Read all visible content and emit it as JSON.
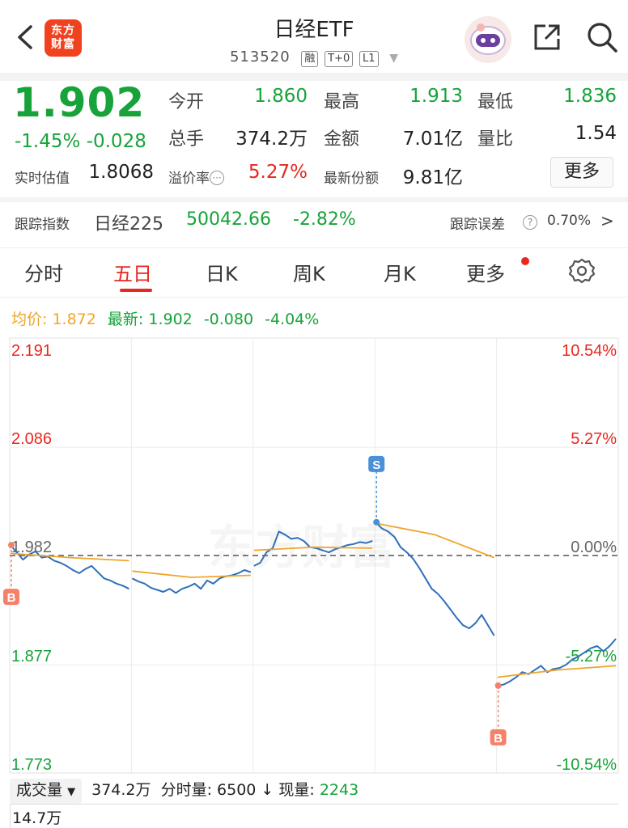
{
  "header": {
    "title": "日经ETF",
    "code": "513520",
    "tags": [
      "融",
      "T+0",
      "L1"
    ],
    "logo_text": "东方财富"
  },
  "quote": {
    "price": "1.902",
    "change_pct": "-1.45%",
    "change_abs": "-0.028",
    "open_label": "今开",
    "open": "1.860",
    "high_label": "最高",
    "high": "1.913",
    "low_label": "最低",
    "low": "1.836",
    "vol_label": "总手",
    "vol": "374.2万",
    "amount_label": "金额",
    "amount": "7.01亿",
    "ratio_label": "量比",
    "ratio": "1.54",
    "iopv_label": "实时估值",
    "iopv": "1.8068",
    "premium_label": "溢价率",
    "premium": "5.27%",
    "shares_label": "最新份额",
    "shares": "9.81亿",
    "more_label": "更多"
  },
  "tracking": {
    "label": "跟踪指数",
    "index_name": "日经225",
    "index_value": "50042.66",
    "index_change": "-2.82%",
    "error_label": "跟踪误差",
    "error_value": "0.70%"
  },
  "tabs": [
    "分时",
    "五日",
    "日K",
    "周K",
    "月K",
    "更多"
  ],
  "active_tab": "五日",
  "legend": {
    "avg_label": "均价:",
    "avg_value": "1.872",
    "latest_label": "最新:",
    "latest_value": "1.902",
    "latest_change": "-0.080",
    "latest_pct": "-4.04%"
  },
  "chart_data": {
    "type": "line",
    "y_left_labels": [
      "2.191",
      "2.086",
      "1.982",
      "1.877",
      "1.773"
    ],
    "y_right_labels": [
      "10.54%",
      "5.27%",
      "0.00%",
      "-5.27%",
      "-10.54%"
    ],
    "ylim": [
      1.773,
      2.191
    ],
    "baseline": 1.982,
    "days": 5,
    "watermark": "东方财富",
    "markers": [
      {
        "label": "B",
        "day": 0,
        "color": "#f4826b"
      },
      {
        "label": "S",
        "day": 3,
        "color": "#4a90d9"
      },
      {
        "label": "B",
        "day": 4,
        "color": "#f4826b"
      }
    ],
    "series": [
      {
        "name": "price",
        "color": "#2f6fbb",
        "days": [
          [
            1.992,
            1.985,
            1.978,
            1.983,
            1.986,
            1.98,
            1.981,
            1.977,
            1.975,
            1.972,
            1.968,
            1.965,
            1.969,
            1.972,
            1.966,
            1.96,
            1.958,
            1.955,
            1.953,
            1.95
          ],
          [
            1.96,
            1.957,
            1.955,
            1.951,
            1.949,
            1.947,
            1.95,
            1.946,
            1.95,
            1.952,
            1.955,
            1.95,
            1.958,
            1.955,
            1.96,
            1.962,
            1.963,
            1.965,
            1.968,
            1.966
          ],
          [
            1.972,
            1.975,
            1.985,
            1.989,
            2.005,
            2.002,
            1.998,
            1.999,
            1.996,
            1.99,
            1.989,
            1.987,
            1.985,
            1.988,
            1.99,
            1.992,
            1.993,
            1.995,
            1.994,
            1.996
          ],
          [
            2.014,
            2.008,
            2.005,
            2.0,
            1.99,
            1.985,
            1.979,
            1.97,
            1.96,
            1.95,
            1.945,
            1.938,
            1.93,
            1.922,
            1.915,
            1.912,
            1.917,
            1.925,
            1.915,
            1.905
          ],
          [
            1.857,
            1.858,
            1.861,
            1.865,
            1.87,
            1.868,
            1.872,
            1.876,
            1.87,
            1.873,
            1.874,
            1.877,
            1.882,
            1.885,
            1.889,
            1.893,
            1.895,
            1.89,
            1.895,
            1.902
          ]
        ]
      },
      {
        "name": "avg",
        "color": "#f0a52a",
        "days": [
          [
            1.984,
            1.98,
            1.977
          ],
          [
            1.967,
            1.961,
            1.963
          ],
          [
            1.987,
            1.99,
            1.989
          ],
          [
            2.013,
            2.002,
            1.98
          ],
          [
            1.865,
            1.872,
            1.876
          ]
        ]
      }
    ]
  },
  "volume": {
    "selector_label": "成交量",
    "total": "374.2万",
    "tick_label": "分时量:",
    "tick_value": "6500",
    "now_label": "现量:",
    "now_value": "2243",
    "axis_top": "14.7万"
  },
  "colors": {
    "up": "#e8271f",
    "down": "#17a33a",
    "price_line": "#2f6fbb",
    "avg_line": "#f0a52a"
  }
}
